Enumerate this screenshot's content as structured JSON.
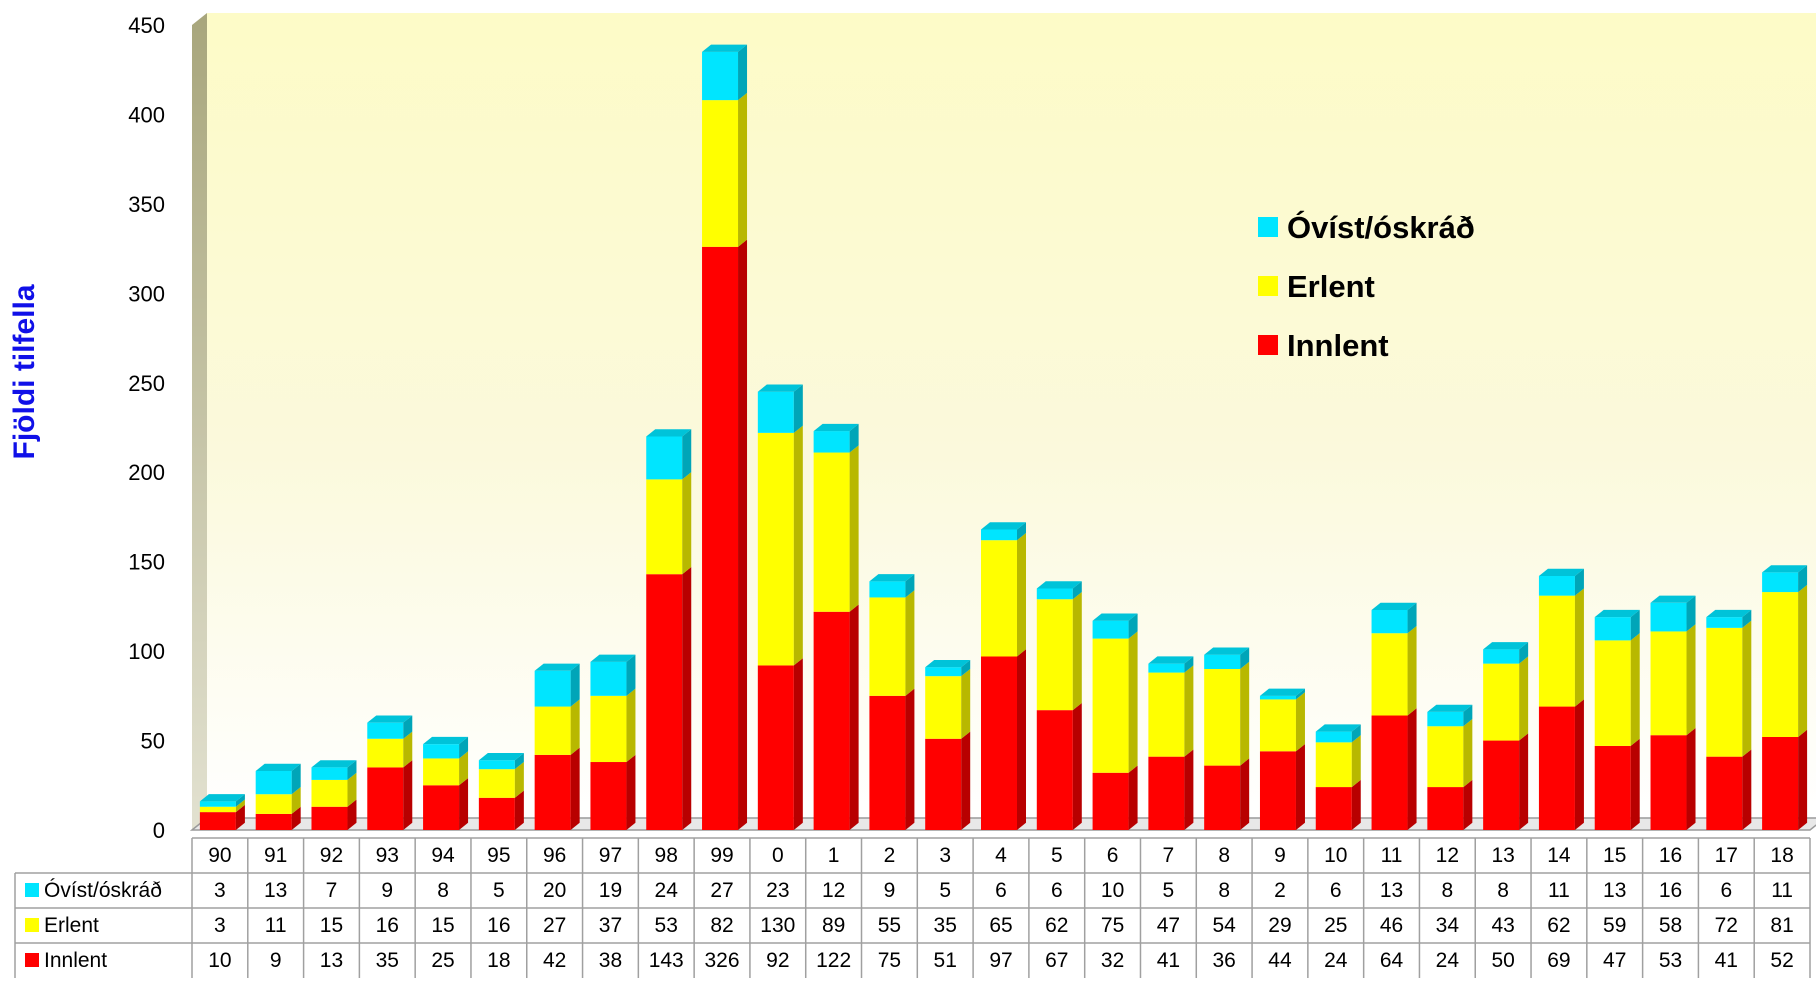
{
  "chart_data": {
    "type": "bar",
    "stacked": true,
    "three_d": true,
    "title": "",
    "xlabel": "",
    "ylabel": "Fjöldi tilfella",
    "ylim": [
      0,
      450
    ],
    "yticks": [
      0,
      50,
      100,
      150,
      200,
      250,
      300,
      350,
      400,
      450
    ],
    "categories": [
      "90",
      "91",
      "92",
      "93",
      "94",
      "95",
      "96",
      "97",
      "98",
      "99",
      "0",
      "1",
      "2",
      "3",
      "4",
      "5",
      "6",
      "7",
      "8",
      "9",
      "10",
      "11",
      "12",
      "13",
      "14",
      "15",
      "16",
      "17",
      "18"
    ],
    "series": [
      {
        "name": "Innlent",
        "color": "#ff0000",
        "values": [
          10,
          9,
          13,
          35,
          25,
          18,
          42,
          38,
          143,
          326,
          92,
          122,
          75,
          51,
          97,
          67,
          32,
          41,
          36,
          44,
          24,
          64,
          24,
          50,
          69,
          47,
          53,
          41,
          52
        ]
      },
      {
        "name": "Erlent",
        "color": "#ffff00",
        "values": [
          3,
          11,
          15,
          16,
          15,
          16,
          27,
          37,
          53,
          82,
          130,
          89,
          55,
          35,
          65,
          62,
          75,
          47,
          54,
          29,
          25,
          46,
          34,
          43,
          62,
          59,
          58,
          72,
          81
        ]
      },
      {
        "name": "Óvíst/óskráð",
        "color": "#00e5ff",
        "values": [
          3,
          13,
          7,
          9,
          8,
          5,
          20,
          19,
          24,
          27,
          23,
          12,
          9,
          5,
          6,
          6,
          10,
          5,
          8,
          2,
          6,
          13,
          8,
          8,
          11,
          13,
          16,
          6,
          11
        ]
      }
    ],
    "legend": {
      "placement": "right",
      "order": [
        "Óvíst/óskráð",
        "Erlent",
        "Innlent"
      ]
    },
    "data_table": true
  }
}
